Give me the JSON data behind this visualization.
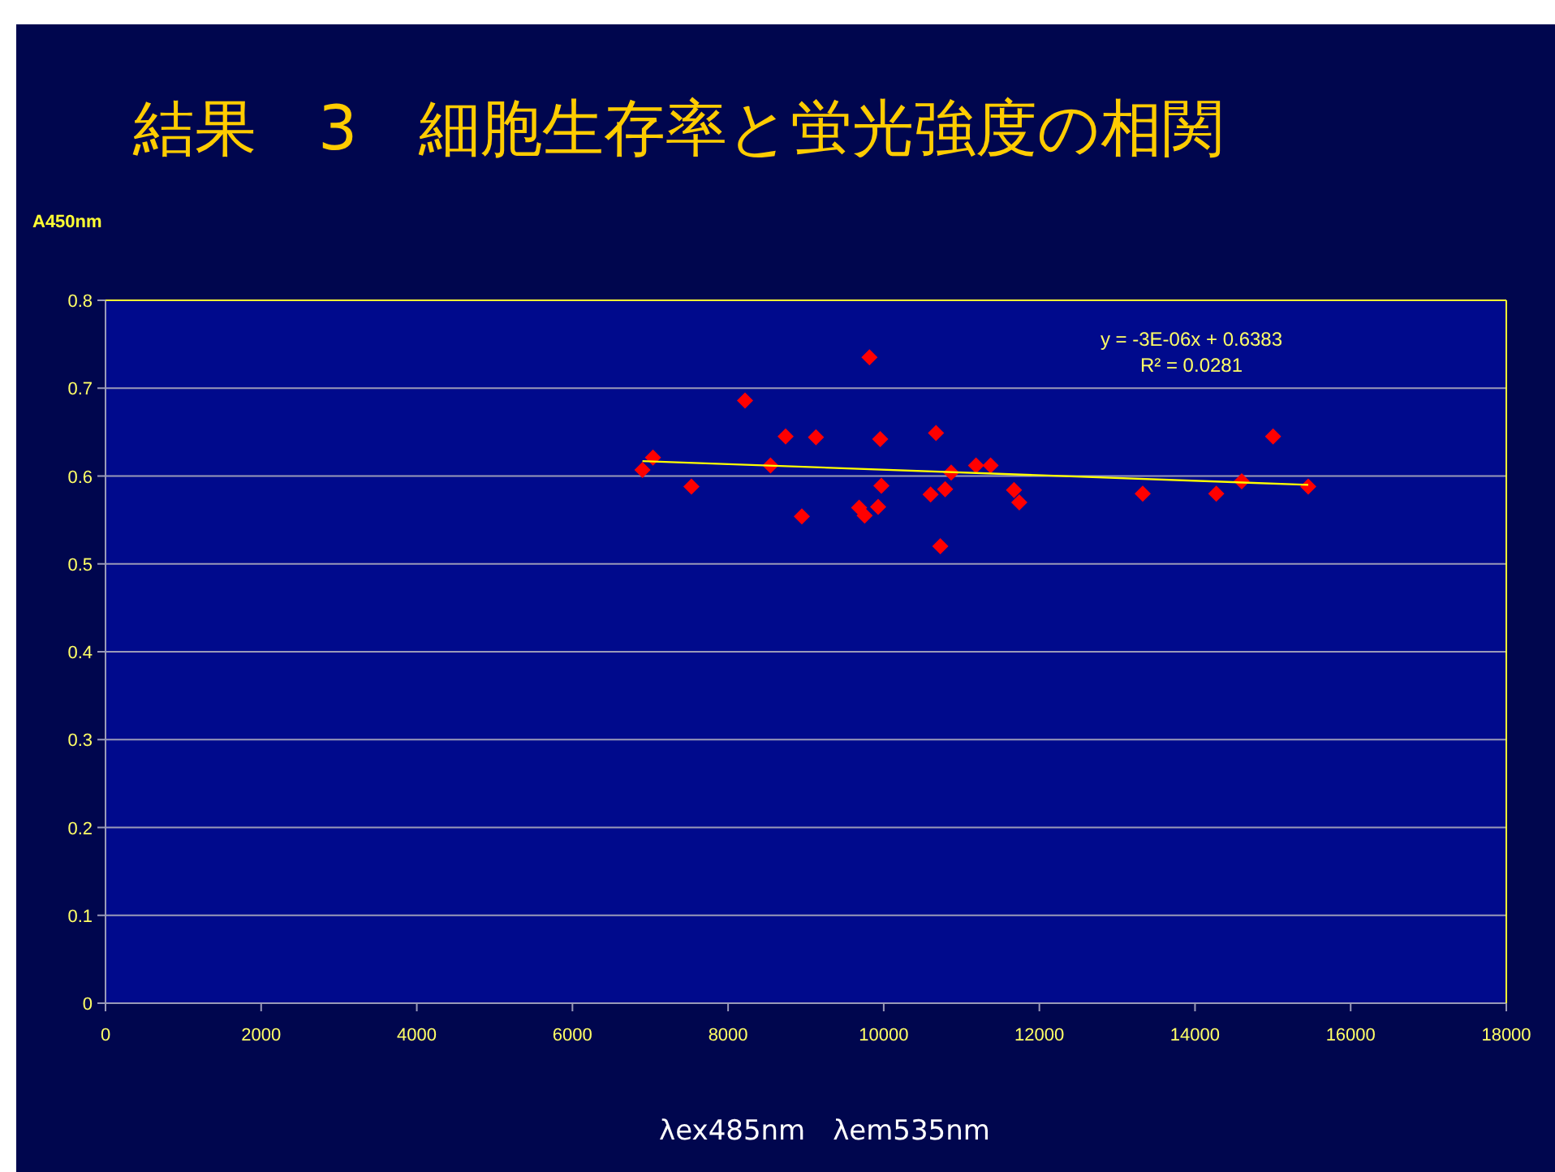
{
  "chart_data": {
    "type": "scatter",
    "title": "結果　3　細胞生存率と蛍光強度の相関",
    "xlabel": "λex485nm　λem535nm",
    "ylabel": "A450nm",
    "xlim": [
      0,
      18000
    ],
    "xticks": [
      0,
      2000,
      4000,
      6000,
      8000,
      10000,
      12000,
      14000,
      16000,
      18000
    ],
    "ylim": [
      0,
      0.8
    ],
    "yticks": [
      0,
      0.1,
      0.2,
      0.3,
      0.4,
      0.5,
      0.6,
      0.7,
      0.8
    ],
    "grid": "y",
    "annotations": [
      "y = -3E-06x + 0.6383",
      "R² = 0.0281"
    ],
    "series": [
      {
        "marker": "diamond",
        "color": "#ff0000",
        "x": [
          6900,
          7035,
          7529,
          8218,
          8545,
          8739,
          8948,
          9129,
          9684,
          9755,
          9817,
          9928,
          9955,
          9970,
          10602,
          10672,
          10727,
          10789,
          10867,
          11186,
          11373,
          11674,
          11742,
          13328,
          14273,
          14600,
          15003,
          15455
        ],
        "values": [
          0.607,
          0.621,
          0.588,
          0.686,
          0.612,
          0.645,
          0.554,
          0.644,
          0.564,
          0.555,
          0.735,
          0.565,
          0.642,
          0.589,
          0.579,
          0.649,
          0.52,
          0.585,
          0.604,
          0.612,
          0.612,
          0.584,
          0.57,
          0.58,
          0.58,
          0.594,
          0.645,
          0.588
        ]
      },
      {
        "type": "line",
        "marker": "none",
        "color": "#ffff00",
        "x": [
          6900,
          15455
        ],
        "values": [
          0.617,
          0.59
        ]
      }
    ]
  }
}
